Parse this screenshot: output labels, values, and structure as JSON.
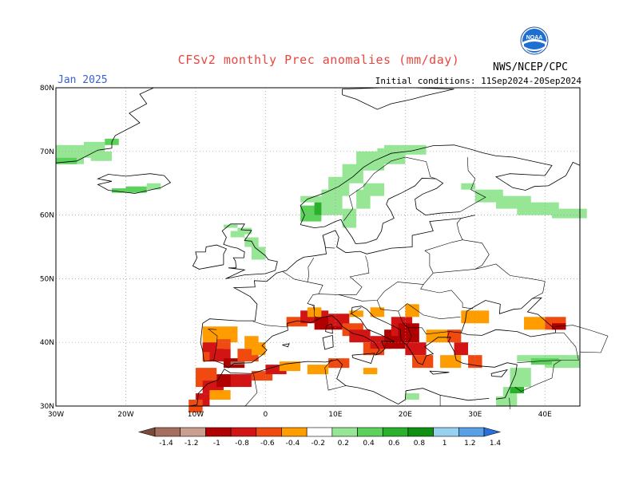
{
  "header": {
    "title": "CFSv2 monthly Prec anomalies (mm/day)",
    "month": "Jan 2025",
    "initial_conditions": "Initial conditions: 11Sep2024-20Sep2024",
    "agency": "NWS/NCEP/CPC",
    "logo_text": "NOAA"
  },
  "map": {
    "lon_range": [
      -30,
      45
    ],
    "lat_range": [
      30,
      80
    ],
    "lat_labels": [
      "30N",
      "40N",
      "50N",
      "60N",
      "70N",
      "80N"
    ],
    "lon_labels": [
      "30W",
      "20W",
      "10W",
      "0",
      "10E",
      "20E",
      "30E",
      "40E"
    ],
    "grid": true
  },
  "colorbar": {
    "levels": [
      "-1.4",
      "-1.2",
      "-1",
      "-0.8",
      "-0.6",
      "-0.4",
      "-0.2",
      "0.2",
      "0.4",
      "0.6",
      "0.8",
      "1",
      "1.2",
      "1.4"
    ],
    "colors": [
      "#7b4a3a",
      "#a56f60",
      "#c9a090",
      "#b00000",
      "#d21414",
      "#f04a10",
      "#ff9c00",
      "#ffffff",
      "#96e696",
      "#5cd25c",
      "#2ab02a",
      "#109010",
      "#96d2f0",
      "#5aa0e6",
      "#2a70dc"
    ]
  }
}
